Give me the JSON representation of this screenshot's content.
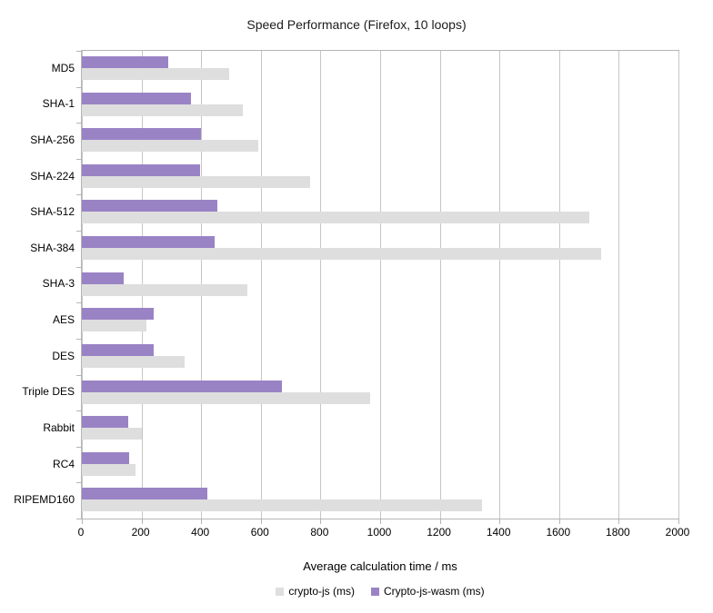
{
  "title": "Speed Performance (Firefox, 10 loops)",
  "chart_data": {
    "type": "bar",
    "orientation": "horizontal",
    "title": "Speed Performance (Firefox, 10 loops)",
    "xlabel": "Average calculation time / ms",
    "ylabel": "",
    "xlim": [
      0,
      2000
    ],
    "x_ticks": [
      0,
      200,
      400,
      600,
      800,
      1000,
      1200,
      1400,
      1600,
      1800,
      2000
    ],
    "grid": true,
    "legend_position": "bottom",
    "categories": [
      "MD5",
      "SHA-1",
      "SHA-256",
      "SHA-224",
      "SHA-512",
      "SHA-384",
      "SHA-3",
      "AES",
      "DES",
      "Triple DES",
      "Rabbit",
      "RC4",
      "RIPEMD160"
    ],
    "series": [
      {
        "name": "crypto-js (ms)",
        "color": "#dedede",
        "values": [
          495,
          540,
          590,
          765,
          1700,
          1740,
          555,
          215,
          345,
          965,
          200,
          180,
          1340
        ]
      },
      {
        "name": "Crypto-js-wasm (ms)",
        "color": "#9a83c5",
        "values": [
          290,
          365,
          400,
          395,
          455,
          445,
          140,
          240,
          240,
          670,
          155,
          160,
          420
        ]
      }
    ]
  },
  "colors": {
    "background": "#ffffff",
    "grid": "#c6c6c6",
    "axis_border": "#b5b5b5",
    "text": "#000000",
    "bar_gray": "#dedede",
    "bar_purple": "#9a83c5"
  }
}
